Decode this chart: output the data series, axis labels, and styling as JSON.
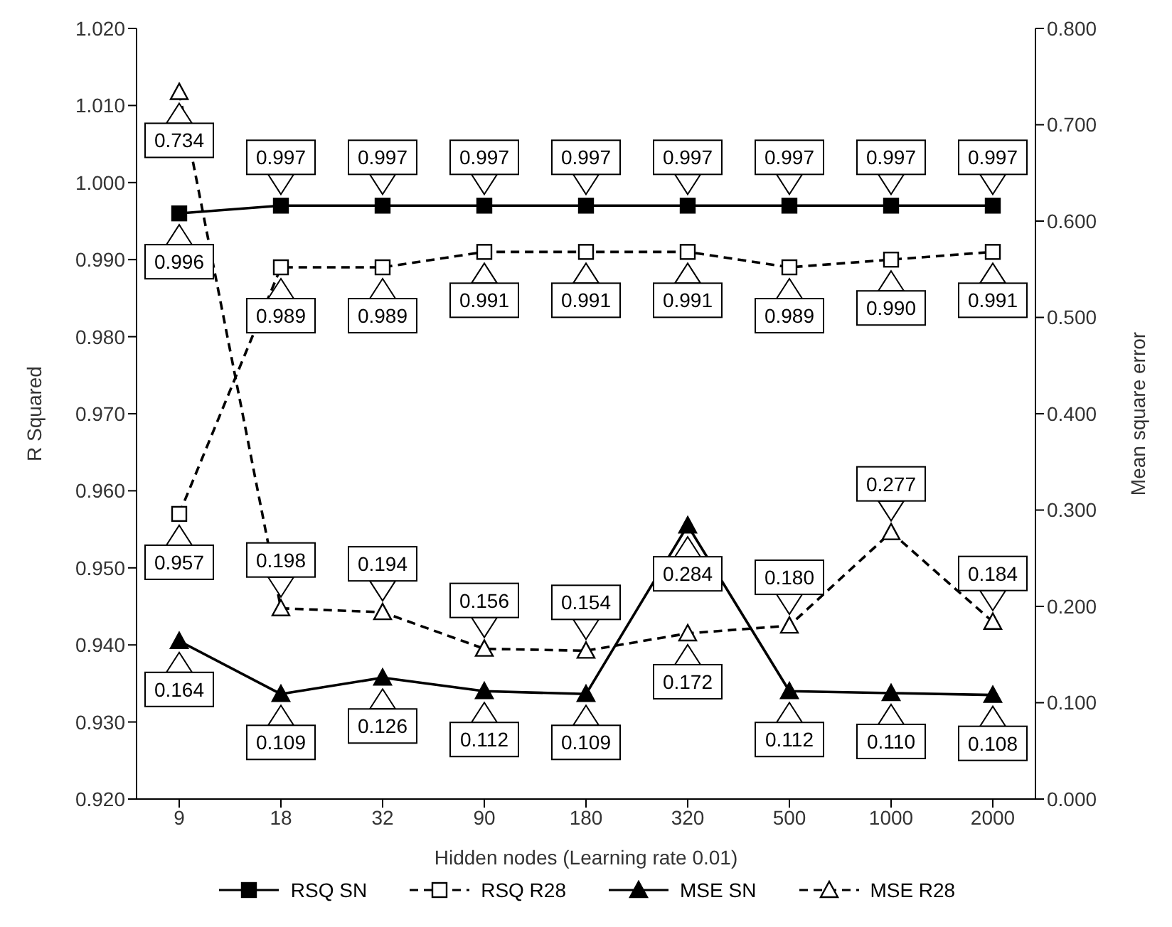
{
  "chart_data": {
    "type": "line",
    "xlabel": "Hidden nodes (Learning rate 0.01)",
    "ylabel": "R Squared",
    "y2label": "Mean square error",
    "categories": [
      "9",
      "18",
      "32",
      "90",
      "180",
      "320",
      "500",
      "1000",
      "2000"
    ],
    "series": [
      {
        "name": "RSQ SN",
        "color": "#000000",
        "marker": "square",
        "line_style": "solid",
        "values": [
          0.996,
          0.997,
          0.997,
          0.997,
          0.997,
          0.997,
          0.997,
          0.997,
          0.997
        ],
        "value_labels": [
          "0.996",
          "0.997",
          "0.997",
          "0.997",
          "0.997",
          "0.997",
          "0.997",
          "0.997",
          "0.997"
        ]
      },
      {
        "name": "RSQ R28",
        "color": "#000000",
        "marker": "square",
        "line_style": "dashed",
        "values": [
          0.957,
          0.989,
          0.989,
          0.991,
          0.991,
          0.991,
          0.989,
          0.99,
          0.991
        ],
        "value_labels": [
          "0.957",
          "0.989",
          "0.989",
          "0.991",
          "0.991",
          "0.991",
          "0.989",
          "0.990",
          "0.991"
        ]
      },
      {
        "name": "MSE SN",
        "color": "#000000",
        "marker": "triangle",
        "line_style": "solid",
        "axis": "y2",
        "values": [
          0.164,
          0.109,
          0.126,
          0.112,
          0.109,
          0.284,
          0.112,
          0.11,
          0.108
        ],
        "value_labels": [
          "0.164",
          "0.109",
          "0.126",
          "0.112",
          "0.109",
          "0.284",
          "0.112",
          "0.110",
          "0.108"
        ]
      },
      {
        "name": "MSE R28",
        "color": "#000000",
        "marker": "triangle",
        "line_style": "dashed",
        "axis": "y2",
        "values": [
          0.734,
          0.198,
          0.194,
          0.156,
          0.154,
          0.172,
          0.18,
          0.277,
          0.184
        ],
        "value_labels": [
          "0.734",
          "0.198",
          "0.194",
          "0.156",
          "0.154",
          "0.172",
          "0.180",
          "0.277",
          "0.184"
        ]
      }
    ],
    "ylim": [
      0.92,
      1.02
    ],
    "yticks": [
      {
        "value": 0.92,
        "label": "0.920"
      },
      {
        "value": 0.93,
        "label": "0.930"
      },
      {
        "value": 0.94,
        "label": "0.940"
      },
      {
        "value": 0.95,
        "label": "0.950"
      },
      {
        "value": 0.96,
        "label": "0.960"
      },
      {
        "value": 0.97,
        "label": "0.970"
      },
      {
        "value": 0.98,
        "label": "0.980"
      },
      {
        "value": 0.99,
        "label": "0.990"
      },
      {
        "value": 1.0,
        "label": "1.000"
      },
      {
        "value": 1.01,
        "label": "1.010"
      },
      {
        "value": 1.02,
        "label": "1.020"
      }
    ],
    "y2lim": [
      0,
      0.8
    ],
    "y2ticks": [
      {
        "value": 0,
        "label": "0.000"
      },
      {
        "value": 0.1,
        "label": "0.100"
      },
      {
        "value": 0.2,
        "label": "0.200"
      },
      {
        "value": 0.3,
        "label": "0.300"
      },
      {
        "value": 0.4,
        "label": "0.400"
      },
      {
        "value": 0.5,
        "label": "0.500"
      },
      {
        "value": 0.6,
        "label": "0.600"
      },
      {
        "value": 0.7,
        "label": "0.700"
      },
      {
        "value": 0.8,
        "label": "0.800"
      }
    ],
    "grid": false,
    "legend": "bottom"
  }
}
